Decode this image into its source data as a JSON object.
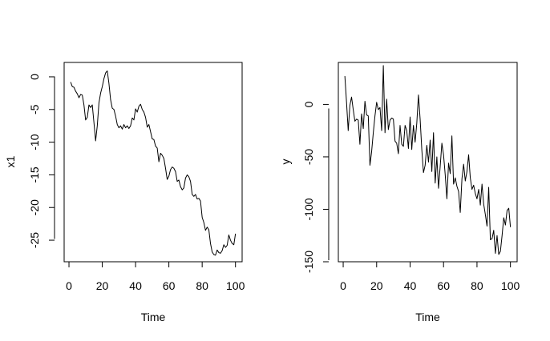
{
  "chart_data": [
    {
      "type": "line",
      "title": "",
      "xlabel": "Time",
      "ylabel": "x1",
      "xlim": [
        -2.9,
        104.0
      ],
      "ylim": [
        -28.3,
        2.2
      ],
      "x_ticks": [
        0,
        20,
        40,
        60,
        80,
        100
      ],
      "y_ticks": [
        0,
        -5,
        -10,
        -15,
        -20,
        -25
      ],
      "x_tick_labels": [
        "0",
        "20",
        "40",
        "60",
        "80",
        "100"
      ],
      "y_tick_labels": [
        "0",
        "-5",
        "-10",
        "-15",
        "-20",
        "-25"
      ],
      "grid": false,
      "legend": "none",
      "color": "#000000",
      "x": [
        1,
        2,
        3,
        4,
        5,
        6,
        7,
        8,
        9,
        10,
        11,
        12,
        13,
        14,
        15,
        16,
        17,
        18,
        19,
        20,
        21,
        22,
        23,
        24,
        25,
        26,
        27,
        28,
        29,
        30,
        31,
        32,
        33,
        34,
        35,
        36,
        37,
        38,
        39,
        40,
        41,
        42,
        43,
        44,
        45,
        46,
        47,
        48,
        49,
        50,
        51,
        52,
        53,
        54,
        55,
        56,
        57,
        58,
        59,
        60,
        61,
        62,
        63,
        64,
        65,
        66,
        67,
        68,
        69,
        70,
        71,
        72,
        73,
        74,
        75,
        76,
        77,
        78,
        79,
        80,
        81,
        82,
        83,
        84,
        85,
        86,
        87,
        88,
        89,
        90,
        91,
        92,
        93,
        94,
        95,
        96,
        97,
        98,
        99,
        100
      ],
      "y": [
        -0.8,
        -1.5,
        -1.6,
        -2.2,
        -2.6,
        -3.2,
        -2.7,
        -2.8,
        -4.3,
        -6.6,
        -6.2,
        -4.3,
        -4.7,
        -4.3,
        -7.0,
        -9.8,
        -7.5,
        -4.0,
        -2.5,
        -1.5,
        -0.3,
        0.6,
        0.9,
        -1.0,
        -3.5,
        -4.8,
        -5.0,
        -6.0,
        -7.3,
        -7.8,
        -7.5,
        -8.0,
        -7.3,
        -7.8,
        -7.5,
        -7.9,
        -7.5,
        -6.3,
        -6.6,
        -4.9,
        -5.4,
        -4.5,
        -4.2,
        -5.0,
        -5.4,
        -6.2,
        -7.7,
        -7.3,
        -8.4,
        -9.5,
        -9.6,
        -10.6,
        -10.9,
        -13.0,
        -11.7,
        -12.0,
        -12.5,
        -14.0,
        -15.7,
        -15.2,
        -14.2,
        -13.8,
        -14.0,
        -14.5,
        -16.0,
        -15.8,
        -16.8,
        -17.3,
        -17.0,
        -15.5,
        -15.0,
        -15.3,
        -16.0,
        -18.0,
        -18.3,
        -18.0,
        -18.7,
        -18.6,
        -19.0,
        -21.5,
        -22.3,
        -23.5,
        -23.0,
        -23.4,
        -25.5,
        -26.8,
        -27.2,
        -27.3,
        -26.5,
        -26.9,
        -27.0,
        -26.6,
        -25.7,
        -26.1,
        -25.8,
        -24.2,
        -25.0,
        -25.5,
        -25.7,
        -24.0
      ]
    },
    {
      "type": "line",
      "title": "",
      "xlabel": "Time",
      "ylabel": "y",
      "xlim": [
        -2.9,
        104.0
      ],
      "ylim": [
        -150.0,
        40.0
      ],
      "x_ticks": [
        0,
        20,
        40,
        60,
        80,
        100
      ],
      "y_ticks": [
        0,
        -50,
        -100,
        -150
      ],
      "x_tick_labels": [
        "0",
        "20",
        "40",
        "60",
        "80",
        "100"
      ],
      "y_tick_labels": [
        "0",
        "-50",
        "-100",
        "-150"
      ],
      "grid": false,
      "legend": "none",
      "color": "#000000",
      "x": [
        1,
        2,
        3,
        4,
        5,
        6,
        7,
        8,
        9,
        10,
        11,
        12,
        13,
        14,
        15,
        16,
        17,
        18,
        19,
        20,
        21,
        22,
        23,
        24,
        25,
        26,
        27,
        28,
        29,
        30,
        31,
        32,
        33,
        34,
        35,
        36,
        37,
        38,
        39,
        40,
        41,
        42,
        43,
        44,
        45,
        46,
        47,
        48,
        49,
        50,
        51,
        52,
        53,
        54,
        55,
        56,
        57,
        58,
        59,
        60,
        61,
        62,
        63,
        64,
        65,
        66,
        67,
        68,
        69,
        70,
        71,
        72,
        73,
        74,
        75,
        76,
        77,
        78,
        79,
        80,
        81,
        82,
        83,
        84,
        85,
        86,
        87,
        88,
        89,
        90,
        91,
        92,
        93,
        94,
        95,
        96,
        97,
        98,
        99,
        100
      ],
      "y": [
        27,
        2,
        -25,
        -1,
        7,
        -5,
        -16,
        -14,
        -15,
        -38,
        -9,
        -23,
        3,
        -10,
        -11,
        -58,
        -45,
        -27,
        -11,
        2,
        -5,
        -3,
        -25,
        37,
        -27,
        5,
        -24,
        -15,
        -13,
        -14,
        -35,
        -37,
        -47,
        -20,
        -38,
        -40,
        -20,
        -25,
        -42,
        -12,
        -43,
        -20,
        -36,
        -18,
        9,
        -14,
        -43,
        -65,
        -58,
        -39,
        -55,
        -34,
        -64,
        -27,
        -75,
        -50,
        -80,
        -59,
        -37,
        -48,
        -67,
        -90,
        -56,
        -66,
        -30,
        -76,
        -70,
        -78,
        -83,
        -103,
        -71,
        -57,
        -73,
        -64,
        -48,
        -70,
        -81,
        -77,
        -85,
        -90,
        -81,
        -96,
        -76,
        -95,
        -105,
        -116,
        -79,
        -129,
        -128,
        -120,
        -142,
        -125,
        -143,
        -140,
        -125,
        -108,
        -115,
        -101,
        -99,
        -117
      ]
    }
  ]
}
